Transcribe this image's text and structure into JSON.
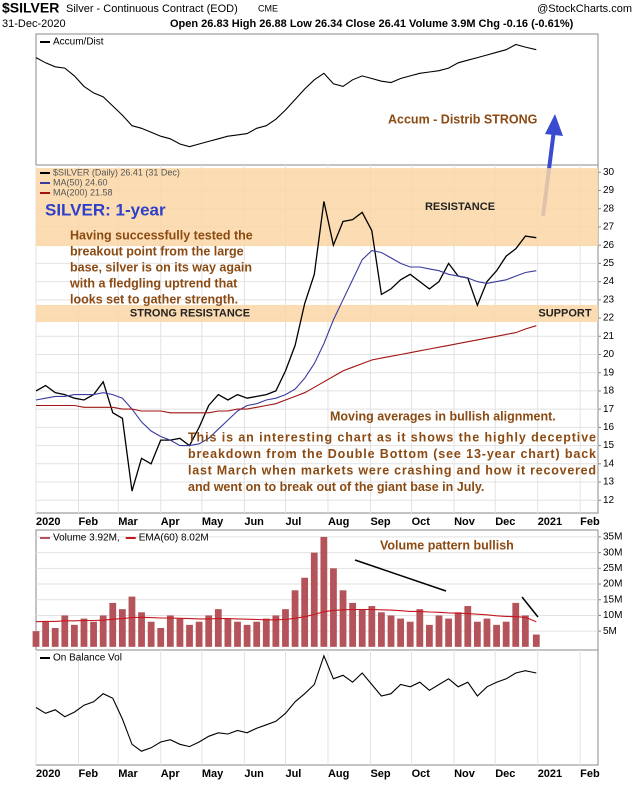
{
  "header": {
    "symbol": "$SILVER",
    "name": "Silver - Continuous Contract (EOD)",
    "exchange": "CME",
    "source": "@StockCharts.com",
    "date": "31-Dec-2020",
    "quote": "Open 26.83  High 26.88  Low 26.34  Close 26.41  Volume 3.9M  Chg -0.16 (-0.61%)"
  },
  "chart_data": [
    {
      "type": "line",
      "xlim": [
        0,
        410
      ],
      "ylim": [
        0,
        100
      ],
      "x": [
        0,
        7,
        14,
        21,
        28,
        35,
        42,
        49,
        56,
        63,
        70,
        77,
        84,
        91,
        98,
        105,
        112,
        119,
        126,
        133,
        140,
        147,
        154,
        161,
        168,
        175,
        182,
        189,
        196,
        203,
        210,
        217,
        224,
        231,
        238,
        245,
        252,
        259,
        266,
        273,
        280,
        287,
        294,
        301,
        308,
        315,
        322,
        329,
        336,
        343,
        350,
        357,
        365
      ],
      "series": [
        {
          "name": "Accum/Dist",
          "color": "#000000",
          "values": [
            82,
            78,
            75,
            74,
            68,
            60,
            55,
            52,
            45,
            38,
            30,
            28,
            25,
            22,
            20,
            16,
            14,
            16,
            18,
            20,
            22,
            23,
            24,
            28,
            30,
            35,
            42,
            50,
            58,
            65,
            70,
            62,
            60,
            65,
            68,
            66,
            64,
            63,
            66,
            68,
            70,
            71,
            72,
            74,
            78,
            80,
            82,
            84,
            86,
            88,
            92,
            90,
            88
          ]
        }
      ],
      "annotations": [
        {
          "lines": [
            "Accum - Distrib STRONG"
          ]
        }
      ]
    },
    {
      "type": "line",
      "xlim": [
        0,
        410
      ],
      "ylim": [
        11.3,
        30.4
      ],
      "yticks": [
        12,
        13,
        14,
        15,
        16,
        17,
        18,
        19,
        20,
        21,
        22,
        23,
        24,
        25,
        26,
        27,
        28,
        29,
        30
      ],
      "grid": true,
      "xticks": [
        {
          "value": 0,
          "label": "2020"
        },
        {
          "value": 31,
          "label": "Feb"
        },
        {
          "value": 60,
          "label": "Mar"
        },
        {
          "value": 91,
          "label": "Apr"
        },
        {
          "value": 121,
          "label": "May"
        },
        {
          "value": 152,
          "label": "Jun"
        },
        {
          "value": 182,
          "label": "Jul"
        },
        {
          "value": 213,
          "label": "Aug"
        },
        {
          "value": 244,
          "label": "Sep"
        },
        {
          "value": 274,
          "label": "Oct"
        },
        {
          "value": 305,
          "label": "Nov"
        },
        {
          "value": 335,
          "label": "Dec"
        },
        {
          "value": 366,
          "label": "2021"
        },
        {
          "value": 397,
          "label": "Feb"
        }
      ],
      "x": [
        0,
        7,
        14,
        21,
        28,
        35,
        42,
        49,
        56,
        63,
        70,
        77,
        84,
        91,
        98,
        105,
        112,
        119,
        126,
        133,
        140,
        147,
        154,
        161,
        168,
        175,
        182,
        189,
        196,
        203,
        210,
        217,
        224,
        231,
        238,
        245,
        252,
        259,
        266,
        273,
        280,
        287,
        294,
        301,
        308,
        315,
        322,
        329,
        336,
        343,
        350,
        357,
        365
      ],
      "bands": [
        {
          "labels": [
            "RESISTANCE"
          ],
          "range": [
            25.95,
            30.23
          ],
          "color": "#fbd7a6"
        },
        {
          "labels": [
            "STRONG RESISTANCE",
            "SUPPORT"
          ],
          "range": [
            21.78,
            22.72
          ],
          "color": "#fbd7a6"
        }
      ],
      "series": [
        {
          "name": "$SILVER (Daily) 26.41 (31 Dec)",
          "color": "#000000",
          "values": [
            18.0,
            18.3,
            17.9,
            17.8,
            17.6,
            17.5,
            17.8,
            18.5,
            16.8,
            16.5,
            12.5,
            14.3,
            14.0,
            15.3,
            15.3,
            15.4,
            15.0,
            16.0,
            17.2,
            17.8,
            17.5,
            17.8,
            17.6,
            17.7,
            17.8,
            18.0,
            19.1,
            20.5,
            22.8,
            24.4,
            28.4,
            26.0,
            27.3,
            27.4,
            27.8,
            26.8,
            23.3,
            23.6,
            24.1,
            24.4,
            24.0,
            23.6,
            24.0,
            25.0,
            24.3,
            24.2,
            22.7,
            24.0,
            24.6,
            25.4,
            25.8,
            26.5,
            26.41
          ]
        },
        {
          "name": "MA(50) 24.60",
          "color": "#3a3aa0",
          "values": [
            17.5,
            17.6,
            17.7,
            17.7,
            17.8,
            17.8,
            17.8,
            17.9,
            17.8,
            17.6,
            17.0,
            16.3,
            15.8,
            15.5,
            15.3,
            15.0,
            15.0,
            15.1,
            15.4,
            15.9,
            16.4,
            16.9,
            17.2,
            17.3,
            17.5,
            17.6,
            17.8,
            18.1,
            18.7,
            19.5,
            20.6,
            21.9,
            23.0,
            24.1,
            25.2,
            25.7,
            25.6,
            25.3,
            25.0,
            24.8,
            24.8,
            24.7,
            24.6,
            24.4,
            24.3,
            24.2,
            24.0,
            23.9,
            24.0,
            24.1,
            24.3,
            24.5,
            24.6
          ]
        },
        {
          "name": "MA(200) 21.58",
          "color": "#a01414",
          "values": [
            17.2,
            17.2,
            17.2,
            17.2,
            17.2,
            17.1,
            17.1,
            17.1,
            17.1,
            17.0,
            17.0,
            16.9,
            16.9,
            16.9,
            16.8,
            16.8,
            16.8,
            16.8,
            16.8,
            16.9,
            16.9,
            17.0,
            17.0,
            17.1,
            17.2,
            17.3,
            17.5,
            17.7,
            17.9,
            18.2,
            18.5,
            18.8,
            19.1,
            19.3,
            19.5,
            19.7,
            19.8,
            19.9,
            20.0,
            20.1,
            20.2,
            20.3,
            20.4,
            20.5,
            20.6,
            20.7,
            20.8,
            20.9,
            21.0,
            21.1,
            21.2,
            21.4,
            21.58
          ]
        }
      ],
      "annotations": [
        {
          "lines": [
            "SILVER: 1-year"
          ]
        },
        {
          "lines": [
            "Having successfully tested the",
            "breakout point from the large",
            "base, silver is on its way again",
            "with a fledgling uptrend that",
            "looks set to gather strength."
          ]
        },
        {
          "lines": [
            "Moving averages in bullish alignment."
          ]
        },
        {
          "lines": [
            "This is an interesting chart as it shows the highly deceptive",
            "breakdown from the Double Bottom (see 13-year chart) back",
            "last March when markets were crashing and how it recovered",
            "and went on to break out of the giant base in July."
          ]
        }
      ]
    },
    {
      "type": "bar",
      "xlim": [
        0,
        410
      ],
      "ylim": [
        -1,
        37.2
      ],
      "grid": true,
      "yticks": [
        {
          "value": 5,
          "label": "5M"
        },
        {
          "value": 10,
          "label": "10M"
        },
        {
          "value": 15,
          "label": "15M"
        },
        {
          "value": 20,
          "label": "20M"
        },
        {
          "value": 25,
          "label": "25M"
        },
        {
          "value": 30,
          "label": "30M"
        },
        {
          "value": 35,
          "label": "35M"
        }
      ],
      "x": [
        0,
        7,
        14,
        21,
        28,
        35,
        42,
        49,
        56,
        63,
        70,
        77,
        84,
        91,
        98,
        105,
        112,
        119,
        126,
        133,
        140,
        147,
        154,
        161,
        168,
        175,
        182,
        189,
        196,
        203,
        210,
        217,
        224,
        231,
        238,
        245,
        252,
        259,
        266,
        273,
        280,
        287,
        294,
        301,
        308,
        315,
        322,
        329,
        336,
        343,
        350,
        357,
        365
      ],
      "series": [
        {
          "name": "Volume 3.92M,",
          "type": "bar",
          "color": "#b4545a",
          "values": [
            5,
            8,
            6,
            10,
            7,
            9,
            8,
            10,
            14,
            12,
            16,
            11,
            8,
            6,
            10,
            9,
            7,
            8,
            10,
            12,
            9,
            8,
            7,
            8,
            9,
            10,
            12,
            18,
            22,
            30,
            35,
            25,
            18,
            14,
            12,
            13,
            11,
            10,
            9,
            8,
            12,
            7,
            10,
            9,
            11,
            13,
            8,
            9,
            7,
            8,
            14,
            10,
            3.92
          ]
        },
        {
          "name": "EMA(60) 8.02M",
          "type": "line",
          "color": "#c8161e",
          "values": [
            8,
            8.1,
            8.1,
            8.3,
            8.3,
            8.4,
            8.4,
            8.5,
            8.8,
            9,
            9.3,
            9.4,
            9.3,
            9.2,
            9.2,
            9.1,
            9,
            8.9,
            8.9,
            9,
            9,
            8.9,
            8.8,
            8.7,
            8.6,
            8.6,
            8.7,
            9.1,
            9.6,
            10.3,
            11.2,
            11.6,
            11.8,
            11.9,
            11.9,
            11.9,
            11.8,
            11.7,
            11.5,
            11.3,
            11.3,
            11.1,
            11,
            10.8,
            10.7,
            10.6,
            10.4,
            10.2,
            9.9,
            9.7,
            9.6,
            9.4,
            8.02
          ]
        }
      ],
      "annotations": [
        {
          "lines": [
            "Volume pattern bullish"
          ]
        }
      ]
    },
    {
      "type": "line",
      "xlim": [
        0,
        410
      ],
      "ylim": [
        0,
        100
      ],
      "xticks": [
        {
          "value": 0,
          "label": "2020"
        },
        {
          "value": 31,
          "label": "Feb"
        },
        {
          "value": 60,
          "label": "Mar"
        },
        {
          "value": 91,
          "label": "Apr"
        },
        {
          "value": 121,
          "label": "May"
        },
        {
          "value": 152,
          "label": "Jun"
        },
        {
          "value": 182,
          "label": "Jul"
        },
        {
          "value": 213,
          "label": "Aug"
        },
        {
          "value": 244,
          "label": "Sep"
        },
        {
          "value": 274,
          "label": "Oct"
        },
        {
          "value": 305,
          "label": "Nov"
        },
        {
          "value": 335,
          "label": "Dec"
        },
        {
          "value": 366,
          "label": "2021"
        },
        {
          "value": 397,
          "label": "Feb"
        }
      ],
      "x": [
        0,
        7,
        14,
        21,
        28,
        35,
        42,
        49,
        56,
        63,
        70,
        77,
        84,
        91,
        98,
        105,
        112,
        119,
        126,
        133,
        140,
        147,
        154,
        161,
        168,
        175,
        182,
        189,
        196,
        203,
        210,
        217,
        224,
        231,
        238,
        245,
        252,
        259,
        266,
        273,
        280,
        287,
        294,
        301,
        308,
        315,
        322,
        329,
        336,
        343,
        350,
        357,
        365
      ],
      "series": [
        {
          "name": "On Balance Vol",
          "color": "#000000",
          "values": [
            50,
            45,
            48,
            42,
            46,
            52,
            55,
            62,
            58,
            40,
            18,
            12,
            15,
            20,
            22,
            18,
            16,
            20,
            25,
            28,
            27,
            30,
            28,
            32,
            35,
            38,
            45,
            55,
            62,
            70,
            95,
            75,
            78,
            72,
            80,
            70,
            60,
            62,
            70,
            68,
            72,
            65,
            70,
            75,
            68,
            72,
            60,
            68,
            72,
            75,
            80,
            82,
            80
          ]
        }
      ]
    }
  ]
}
